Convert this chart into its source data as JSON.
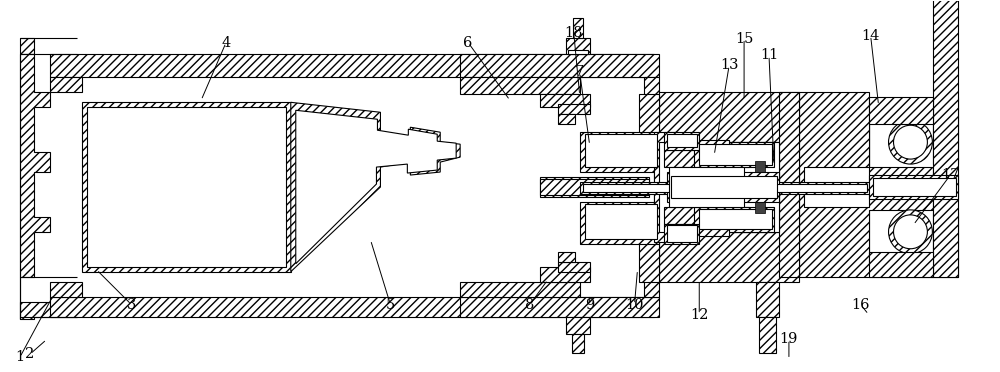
{
  "bg_color": "#ffffff",
  "line_color": "#000000",
  "fig_width": 10.0,
  "fig_height": 3.72,
  "dpi": 100,
  "anno": [
    [
      "1",
      18,
      358,
      52,
      295
    ],
    [
      "2",
      28,
      355,
      45,
      340
    ],
    [
      "3",
      130,
      305,
      95,
      270
    ],
    [
      "4",
      225,
      42,
      200,
      100
    ],
    [
      "5",
      390,
      305,
      370,
      240
    ],
    [
      "6",
      468,
      42,
      510,
      100
    ],
    [
      "7",
      580,
      72,
      590,
      145
    ],
    [
      "8",
      530,
      305,
      548,
      280
    ],
    [
      "9",
      590,
      305,
      590,
      295
    ],
    [
      "10",
      635,
      305,
      638,
      270
    ],
    [
      "11",
      770,
      55,
      775,
      165
    ],
    [
      "12",
      700,
      315,
      700,
      280
    ],
    [
      "13",
      730,
      65,
      715,
      155
    ],
    [
      "14",
      872,
      35,
      880,
      105
    ],
    [
      "15",
      745,
      38,
      745,
      100
    ],
    [
      "16",
      862,
      305,
      870,
      315
    ],
    [
      "17",
      952,
      175,
      915,
      225
    ],
    [
      "18",
      574,
      32,
      580,
      95
    ],
    [
      "19",
      790,
      340,
      790,
      360
    ]
  ]
}
